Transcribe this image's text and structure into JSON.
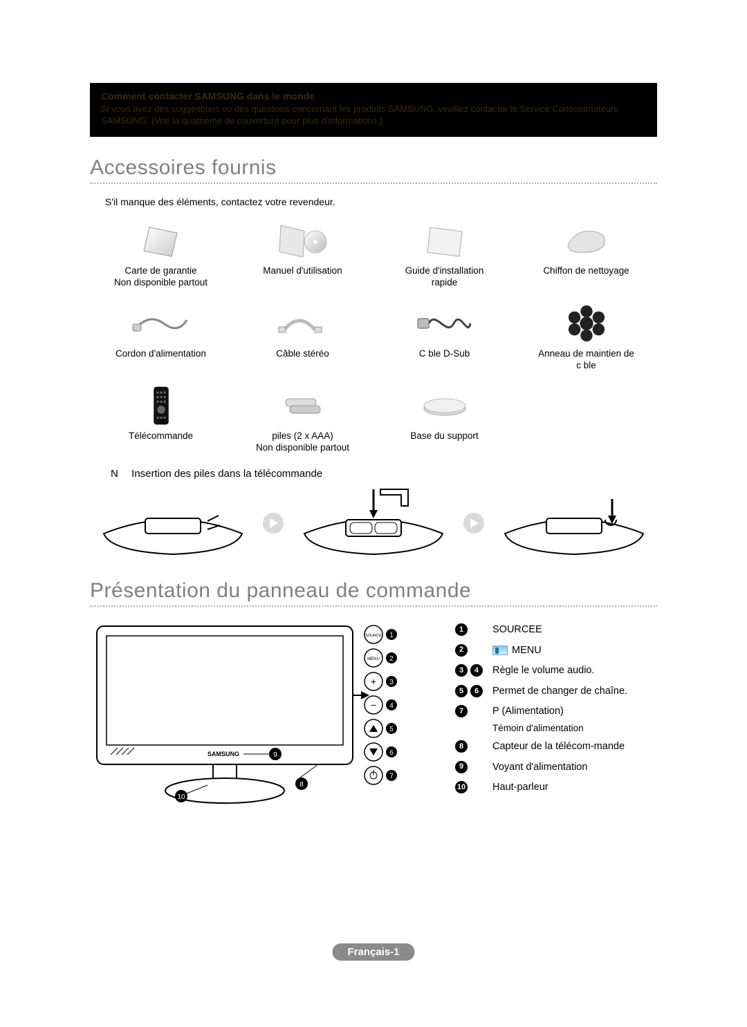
{
  "contact_box": {
    "title": "Comment contacter SAMSUNG dans le monde",
    "body": "Si vous avez des suggestions ou des questions concernant les produits SAMSUNG, veuillez contacter le Service Consommateurs SAMSUNG. (Voir la quatrième de couverture pour plus d'informations.)",
    "bg_color": "#000000",
    "text_color": "#3a2a0a"
  },
  "sections": {
    "accessories_title": "Accessoires fournis",
    "control_panel_title": "Présentation du panneau de commande"
  },
  "accessories": {
    "intro": "S'il manque des éléments, contactez votre revendeur.",
    "items": [
      {
        "label": "Carte de garantie\nNon disponible partout"
      },
      {
        "label": "Manuel d'utilisation"
      },
      {
        "label": "Guide d'installation\nrapide"
      },
      {
        "label": "Chiffon de nettoyage"
      },
      {
        "label": "Cordon d'alimentation"
      },
      {
        "label": "Câble stéréo"
      },
      {
        "label": "C ble D-Sub"
      },
      {
        "label": "Anneau de maintien de\nc ble"
      },
      {
        "label": "Télécommande"
      },
      {
        "label": "piles (2 x AAA)\nNon disponible partout"
      },
      {
        "label": "Base du support"
      },
      {
        "label": ""
      }
    ],
    "note_marker": "N",
    "note_text": "Insertion des piles dans la télécommande"
  },
  "control_panel": {
    "items": [
      {
        "nums": [
          1
        ],
        "text": "SOURCEE"
      },
      {
        "nums": [
          2
        ],
        "text": "MENU",
        "icon": "menu"
      },
      {
        "nums": [
          3,
          4
        ],
        "text": "Règle le volume audio."
      },
      {
        "nums": [
          5,
          6
        ],
        "text": "Permet de changer de chaîne."
      },
      {
        "nums": [
          7
        ],
        "text": "P (Alimentation)",
        "sub": "Témoin d'alimentation"
      },
      {
        "nums": [
          8
        ],
        "text": "Capteur de la télécom-mande"
      },
      {
        "nums": [
          9
        ],
        "text": "Voyant d'alimentation"
      },
      {
        "nums": [
          10
        ],
        "text": "Haut-parleur"
      }
    ],
    "button_labels": {
      "source": "SOURCE",
      "menu": "MENU"
    },
    "tv_brand": "SAMSUNG"
  },
  "footer": "Français-1",
  "colors": {
    "heading": "#808080",
    "dotted": "#b0b0b0",
    "pill_bg": "#8a8a8a",
    "pill_fg": "#ffffff"
  }
}
